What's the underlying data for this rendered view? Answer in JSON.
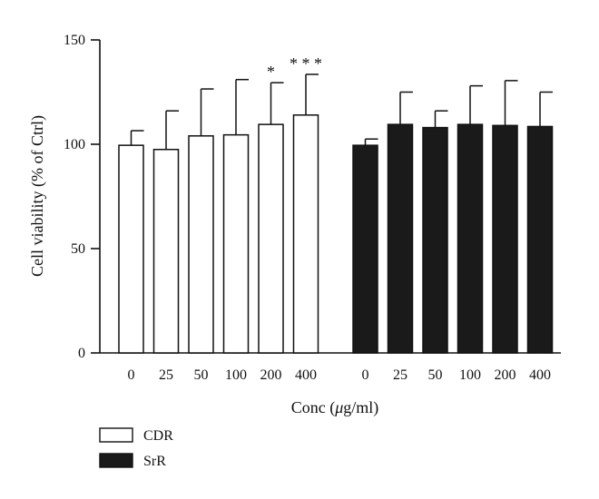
{
  "chart_data": {
    "type": "bar",
    "xlabel_parts": [
      "Conc (",
      "μ",
      "g/ml)"
    ],
    "ylabel": "Cell viability (% of Ctrl)",
    "ylim": [
      0,
      150
    ],
    "yticks": [
      0,
      50,
      100,
      150
    ],
    "categories": [
      "0",
      "25",
      "50",
      "100",
      "200",
      "400"
    ],
    "series": [
      {
        "name": "CDR",
        "color": "#ffffff",
        "values": [
          99.5,
          97.5,
          104,
          104.5,
          109.5,
          114
        ],
        "errors": [
          7,
          18.5,
          22.5,
          26.5,
          20,
          19.5
        ],
        "significance": [
          "",
          "",
          "",
          "",
          "*",
          "***"
        ]
      },
      {
        "name": "SrR",
        "color": "#1a1a1a",
        "values": [
          99.5,
          109.5,
          108,
          109.5,
          109,
          108.5
        ],
        "errors": [
          3,
          15.5,
          8,
          18.5,
          21.5,
          16.5
        ],
        "significance": [
          "",
          "",
          "",
          "",
          "",
          ""
        ]
      }
    ],
    "legend_position": "bottom-left",
    "grid": false
  }
}
